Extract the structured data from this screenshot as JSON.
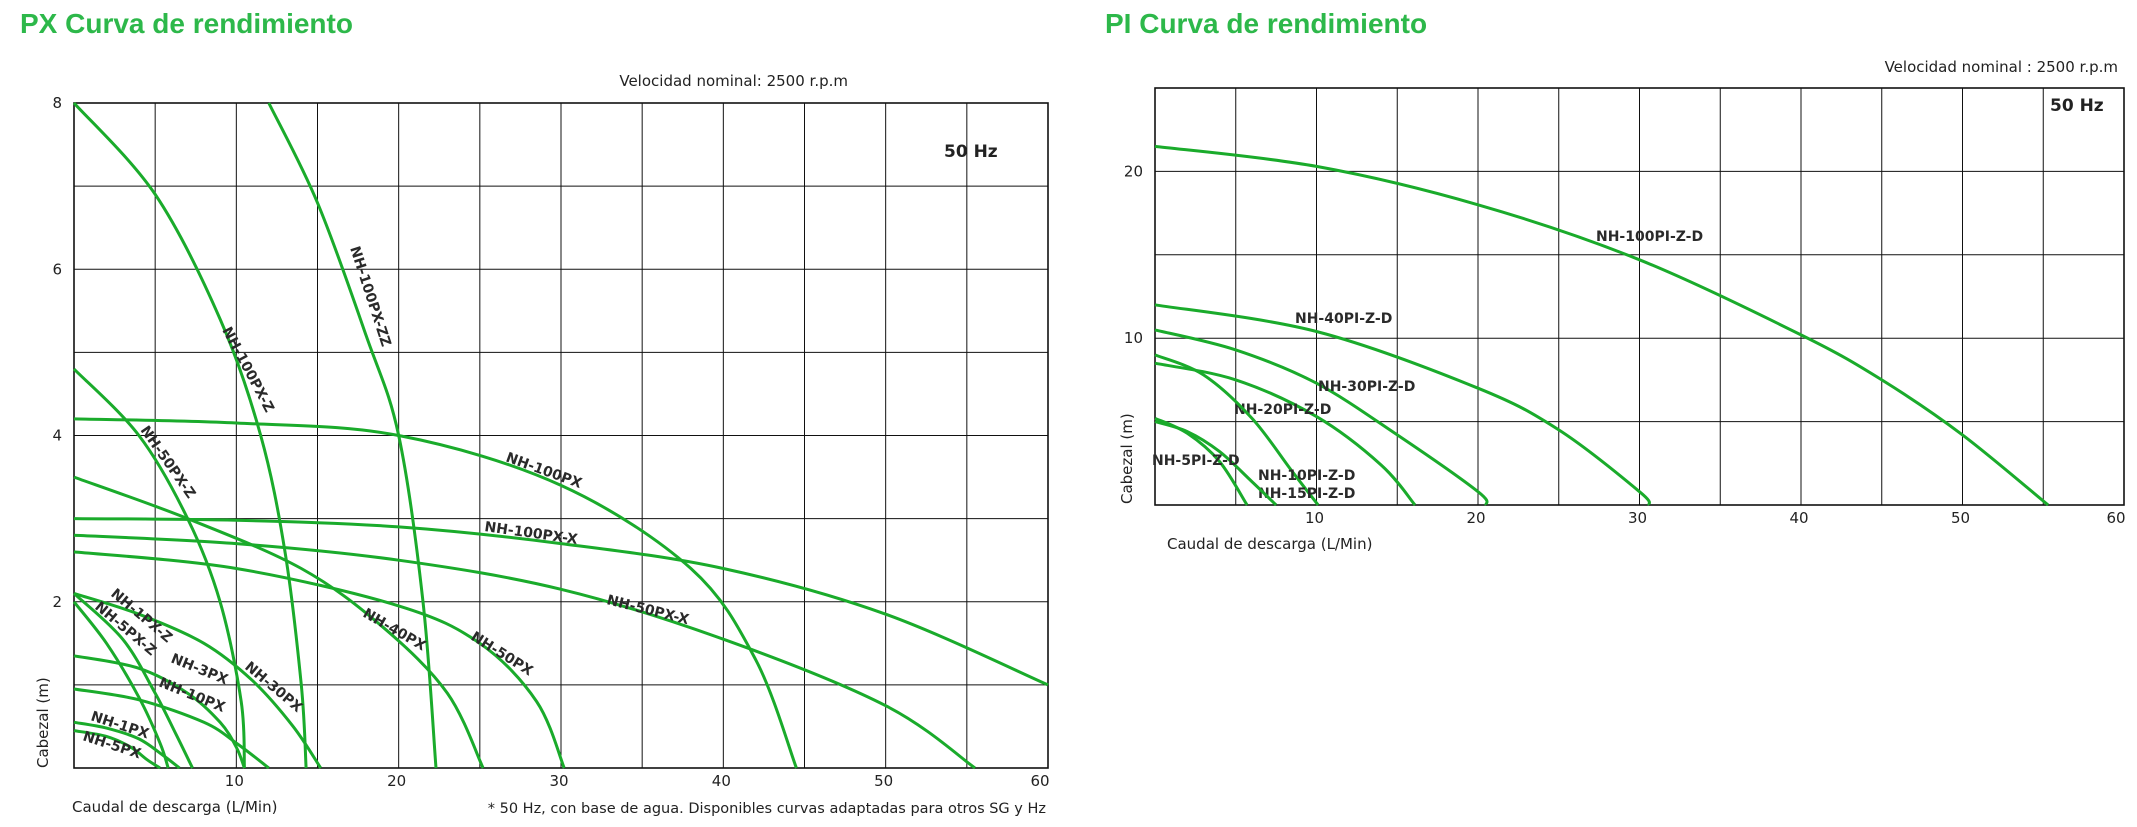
{
  "charts": [
    {
      "title": "PX Curva de rendimiento",
      "speed": "Velocidad nominal: 2500 r.p.m",
      "hz": "50 Hz",
      "note": "* 50 Hz, con base de agua. Disponibles curvas adaptadas para otros SG y Hz",
      "xlabel": "Caudal de descarga (L/Min)",
      "ylabel": "Cabezal (m)"
    },
    {
      "title": "PI Curva de rendimiento",
      "speed": "Velocidad nominal : 2500 r.p.m",
      "hz": "50 Hz",
      "xlabel": "Caudal de descarga (L/Min)",
      "ylabel": "Cabezal (m)"
    }
  ],
  "chart_data": [
    {
      "type": "line",
      "title": "PX Curva de rendimiento",
      "xlabel": "Caudal de descarga (L/Min)",
      "ylabel": "Cabezal (m)",
      "xlim": [
        0,
        60
      ],
      "ylim": [
        0,
        8
      ],
      "xticks": [
        10,
        20,
        30,
        40,
        50,
        60
      ],
      "yticks": [
        2,
        4,
        6,
        8
      ],
      "grid": true,
      "series": [
        {
          "name": "NH-100PX-ZZ",
          "x": [
            12,
            15,
            18,
            20,
            21.5,
            22.3
          ],
          "y": [
            8,
            6.8,
            5.2,
            4,
            2,
            0
          ]
        },
        {
          "name": "NH-100PX-Z",
          "x": [
            0,
            5,
            9,
            11.5,
            13,
            14,
            14.3
          ],
          "y": [
            8,
            6.9,
            5.4,
            4,
            2.6,
            1,
            0
          ]
        },
        {
          "name": "NH-50PX-Z",
          "x": [
            0,
            4,
            7,
            9,
            10.3,
            10.5
          ],
          "y": [
            4.8,
            4,
            3,
            2,
            0.8,
            0
          ]
        },
        {
          "name": "NH-100PX",
          "x": [
            0,
            10,
            20,
            30,
            38,
            42,
            44.5
          ],
          "y": [
            4.2,
            4.15,
            4,
            3.4,
            2.4,
            1.3,
            0
          ]
        },
        {
          "name": "NH-100PX-X",
          "x": [
            0,
            10,
            20,
            30,
            40,
            50,
            60
          ],
          "y": [
            3.0,
            2.98,
            2.9,
            2.7,
            2.4,
            1.85,
            1.0
          ]
        },
        {
          "name": "NH-50PX-X",
          "x": [
            0,
            10,
            20,
            30,
            40,
            50,
            55.5
          ],
          "y": [
            2.8,
            2.7,
            2.5,
            2.15,
            1.55,
            0.75,
            0
          ]
        },
        {
          "name": "NH-50PX",
          "x": [
            0,
            10,
            20,
            25,
            28.5,
            30.2
          ],
          "y": [
            2.6,
            2.4,
            1.95,
            1.5,
            0.8,
            0
          ]
        },
        {
          "name": "NH-40PX",
          "x": [
            0,
            7,
            14,
            19,
            23,
            25.2
          ],
          "y": [
            3.5,
            3.0,
            2.4,
            1.7,
            0.9,
            0
          ]
        },
        {
          "name": "NH-30PX",
          "x": [
            0,
            4,
            8,
            11,
            13.5,
            15.2
          ],
          "y": [
            2.1,
            1.85,
            1.5,
            1.05,
            0.5,
            0
          ]
        },
        {
          "name": "NH-3PX",
          "x": [
            0,
            4,
            7,
            9,
            10,
            10.5
          ],
          "y": [
            1.35,
            1.2,
            0.9,
            0.55,
            0.25,
            0
          ]
        },
        {
          "name": "NH-10PX",
          "x": [
            0,
            4,
            8,
            10,
            12
          ],
          "y": [
            0.95,
            0.82,
            0.55,
            0.3,
            0
          ]
        },
        {
          "name": "NH-1PX-Z",
          "x": [
            0,
            3,
            5,
            6.3,
            7.3
          ],
          "y": [
            2.1,
            1.55,
            0.9,
            0.4,
            0
          ]
        },
        {
          "name": "NH-5PX-Z",
          "x": [
            0,
            2,
            4,
            5.3,
            5.8
          ],
          "y": [
            2.0,
            1.5,
            0.85,
            0.3,
            0
          ]
        },
        {
          "name": "NH-1PX",
          "x": [
            0,
            2,
            4,
            5.5,
            6.5
          ],
          "y": [
            0.55,
            0.48,
            0.35,
            0.15,
            0
          ]
        },
        {
          "name": "NH-5PX",
          "x": [
            0,
            2,
            3.5,
            4.5,
            5.3
          ],
          "y": [
            0.45,
            0.38,
            0.25,
            0.1,
            0
          ]
        }
      ]
    },
    {
      "type": "line",
      "title": "PI Curva de rendimiento",
      "xlabel": "Caudal de descarga (L/Min)",
      "ylabel": "Cabezal (m)",
      "xlim": [
        0,
        60
      ],
      "ylim": [
        0,
        25
      ],
      "xticks": [
        10,
        20,
        30,
        40,
        50,
        60
      ],
      "yticks": [
        10,
        20
      ],
      "grid": true,
      "series": [
        {
          "name": "NH-100PI-Z-D",
          "x": [
            0,
            10,
            20,
            30,
            40,
            45,
            50,
            55.3
          ],
          "y": [
            21.5,
            20.3,
            18.0,
            14.7,
            10.2,
            7.5,
            4.2,
            0
          ]
        },
        {
          "name": "NH-40PI-Z-D",
          "x": [
            0,
            10,
            20,
            25,
            30,
            30.6
          ],
          "y": [
            12.0,
            10.4,
            7.0,
            4.5,
            0.8,
            0
          ]
        },
        {
          "name": "NH-30PI-Z-D",
          "x": [
            0,
            5,
            10,
            15,
            20,
            20.5
          ],
          "y": [
            10.5,
            9.3,
            7.3,
            4.2,
            0.8,
            0
          ]
        },
        {
          "name": "NH-20PI-Z-D",
          "x": [
            0,
            5,
            10,
            14,
            16.1
          ],
          "y": [
            8.5,
            7.5,
            5.3,
            2.4,
            0
          ]
        },
        {
          "name": "NH-15PI-Z-D",
          "x": [
            0,
            3,
            6,
            8.5,
            10.1
          ],
          "y": [
            9.0,
            7.8,
            5.2,
            2.0,
            0
          ]
        },
        {
          "name": "NH-10PI-Z-D",
          "x": [
            0,
            2,
            4,
            6,
            7.5
          ],
          "y": [
            5.0,
            4.4,
            3.2,
            1.4,
            0
          ]
        },
        {
          "name": "NH-5PI-Z-D",
          "x": [
            0,
            2,
            4,
            5.7
          ],
          "y": [
            5.2,
            4.3,
            2.6,
            0
          ]
        }
      ]
    }
  ]
}
